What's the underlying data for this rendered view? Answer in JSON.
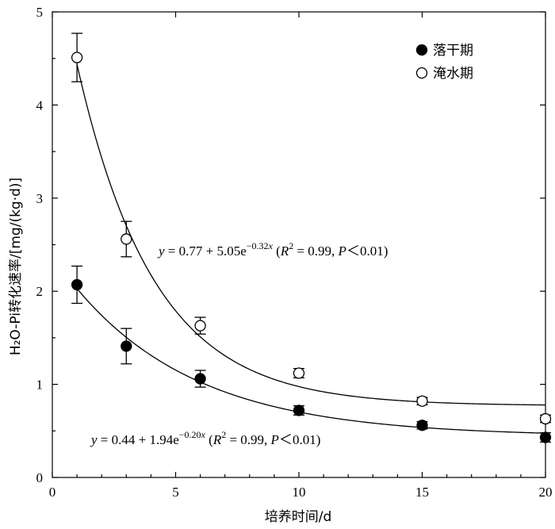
{
  "chart_data": {
    "type": "scatter",
    "xlabel": "培养时间/d",
    "ylabel": "H₂O-Pi转化速率/[mg/(kg·d)]",
    "xlim": [
      0,
      20
    ],
    "ylim": [
      0,
      5
    ],
    "xticks": [
      "0",
      "5",
      "10",
      "15",
      "20"
    ],
    "yticks": [
      "0",
      "1",
      "2",
      "3",
      "4",
      "5"
    ],
    "legend_position": "top-right",
    "series": [
      {
        "name": "落干期",
        "marker": "filled",
        "x": [
          1,
          3,
          6,
          10,
          15,
          20
        ],
        "y": [
          2.07,
          1.41,
          1.06,
          0.72,
          0.56,
          0.43
        ],
        "err": [
          0.2,
          0.19,
          0.09,
          0.05,
          0.04,
          0.05
        ],
        "fit": {
          "a": 0.44,
          "b": 1.94,
          "k": 0.2
        }
      },
      {
        "name": "淹水期",
        "marker": "open",
        "x": [
          1,
          3,
          6,
          10,
          15,
          20
        ],
        "y": [
          4.51,
          2.56,
          1.63,
          1.12,
          0.82,
          0.63
        ],
        "err": [
          0.26,
          0.19,
          0.09,
          0.05,
          0.04,
          0.04
        ],
        "fit": {
          "a": 0.77,
          "b": 5.05,
          "k": 0.32
        }
      }
    ],
    "annotations": {
      "top": {
        "a": "0.77",
        "b": "5.05",
        "exp": "−0.32",
        "r2": "0.99",
        "p": "0.01"
      },
      "bottom": {
        "a": "0.44",
        "b": "1.94",
        "exp": "−0.20",
        "r2": "0.99",
        "p": "0.01"
      }
    }
  },
  "strings": {
    "y_var": "y",
    "x_var": "x",
    "eq_sign": " = ",
    "plus": " + ",
    "e_base": "e",
    "r_sym": "R",
    "sq": "2",
    "p_sym": "P",
    "lt": "＜",
    "open_paren": " (",
    "close_paren": ")",
    "comma": ", "
  }
}
